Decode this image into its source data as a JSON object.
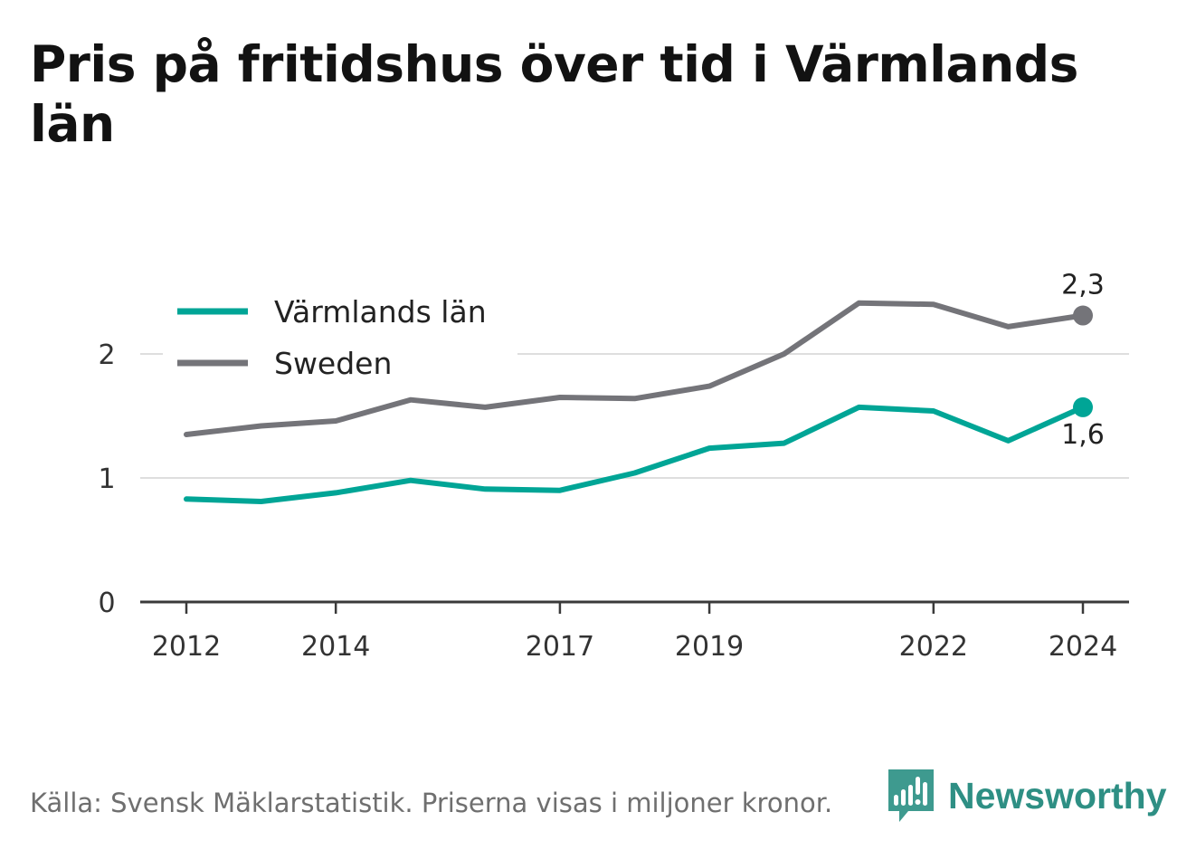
{
  "chart_data": {
    "type": "line",
    "title": "Pris på fritidshus över tid i Värmlands län",
    "x": [
      2012,
      2013,
      2014,
      2015,
      2016,
      2017,
      2018,
      2019,
      2020,
      2021,
      2022,
      2023,
      2024
    ],
    "x_ticks": [
      2012,
      2014,
      2017,
      2019,
      2022,
      2024
    ],
    "y_ticks": [
      0,
      1,
      2
    ],
    "ylim": [
      0,
      2.5
    ],
    "grid": true,
    "legend_position": "top-left",
    "series": [
      {
        "name": "Värmlands län",
        "color": "#00a596",
        "values": [
          0.83,
          0.81,
          0.88,
          0.98,
          0.91,
          0.9,
          1.04,
          1.24,
          1.28,
          1.57,
          1.54,
          1.3,
          1.57
        ],
        "end_label": "1,6"
      },
      {
        "name": "Sweden",
        "color": "#747479",
        "values": [
          1.35,
          1.42,
          1.46,
          1.63,
          1.57,
          1.65,
          1.64,
          1.74,
          2.0,
          2.41,
          2.4,
          2.22,
          2.31
        ],
        "end_label": "2,3"
      }
    ]
  },
  "source": "Källa: Svensk Mäklarstatistik. Priserna visas i miljoner kronor.",
  "brand": {
    "name": "Newsworthy",
    "color": "#2e8f84",
    "icon": "newsworthy-logo-icon"
  }
}
